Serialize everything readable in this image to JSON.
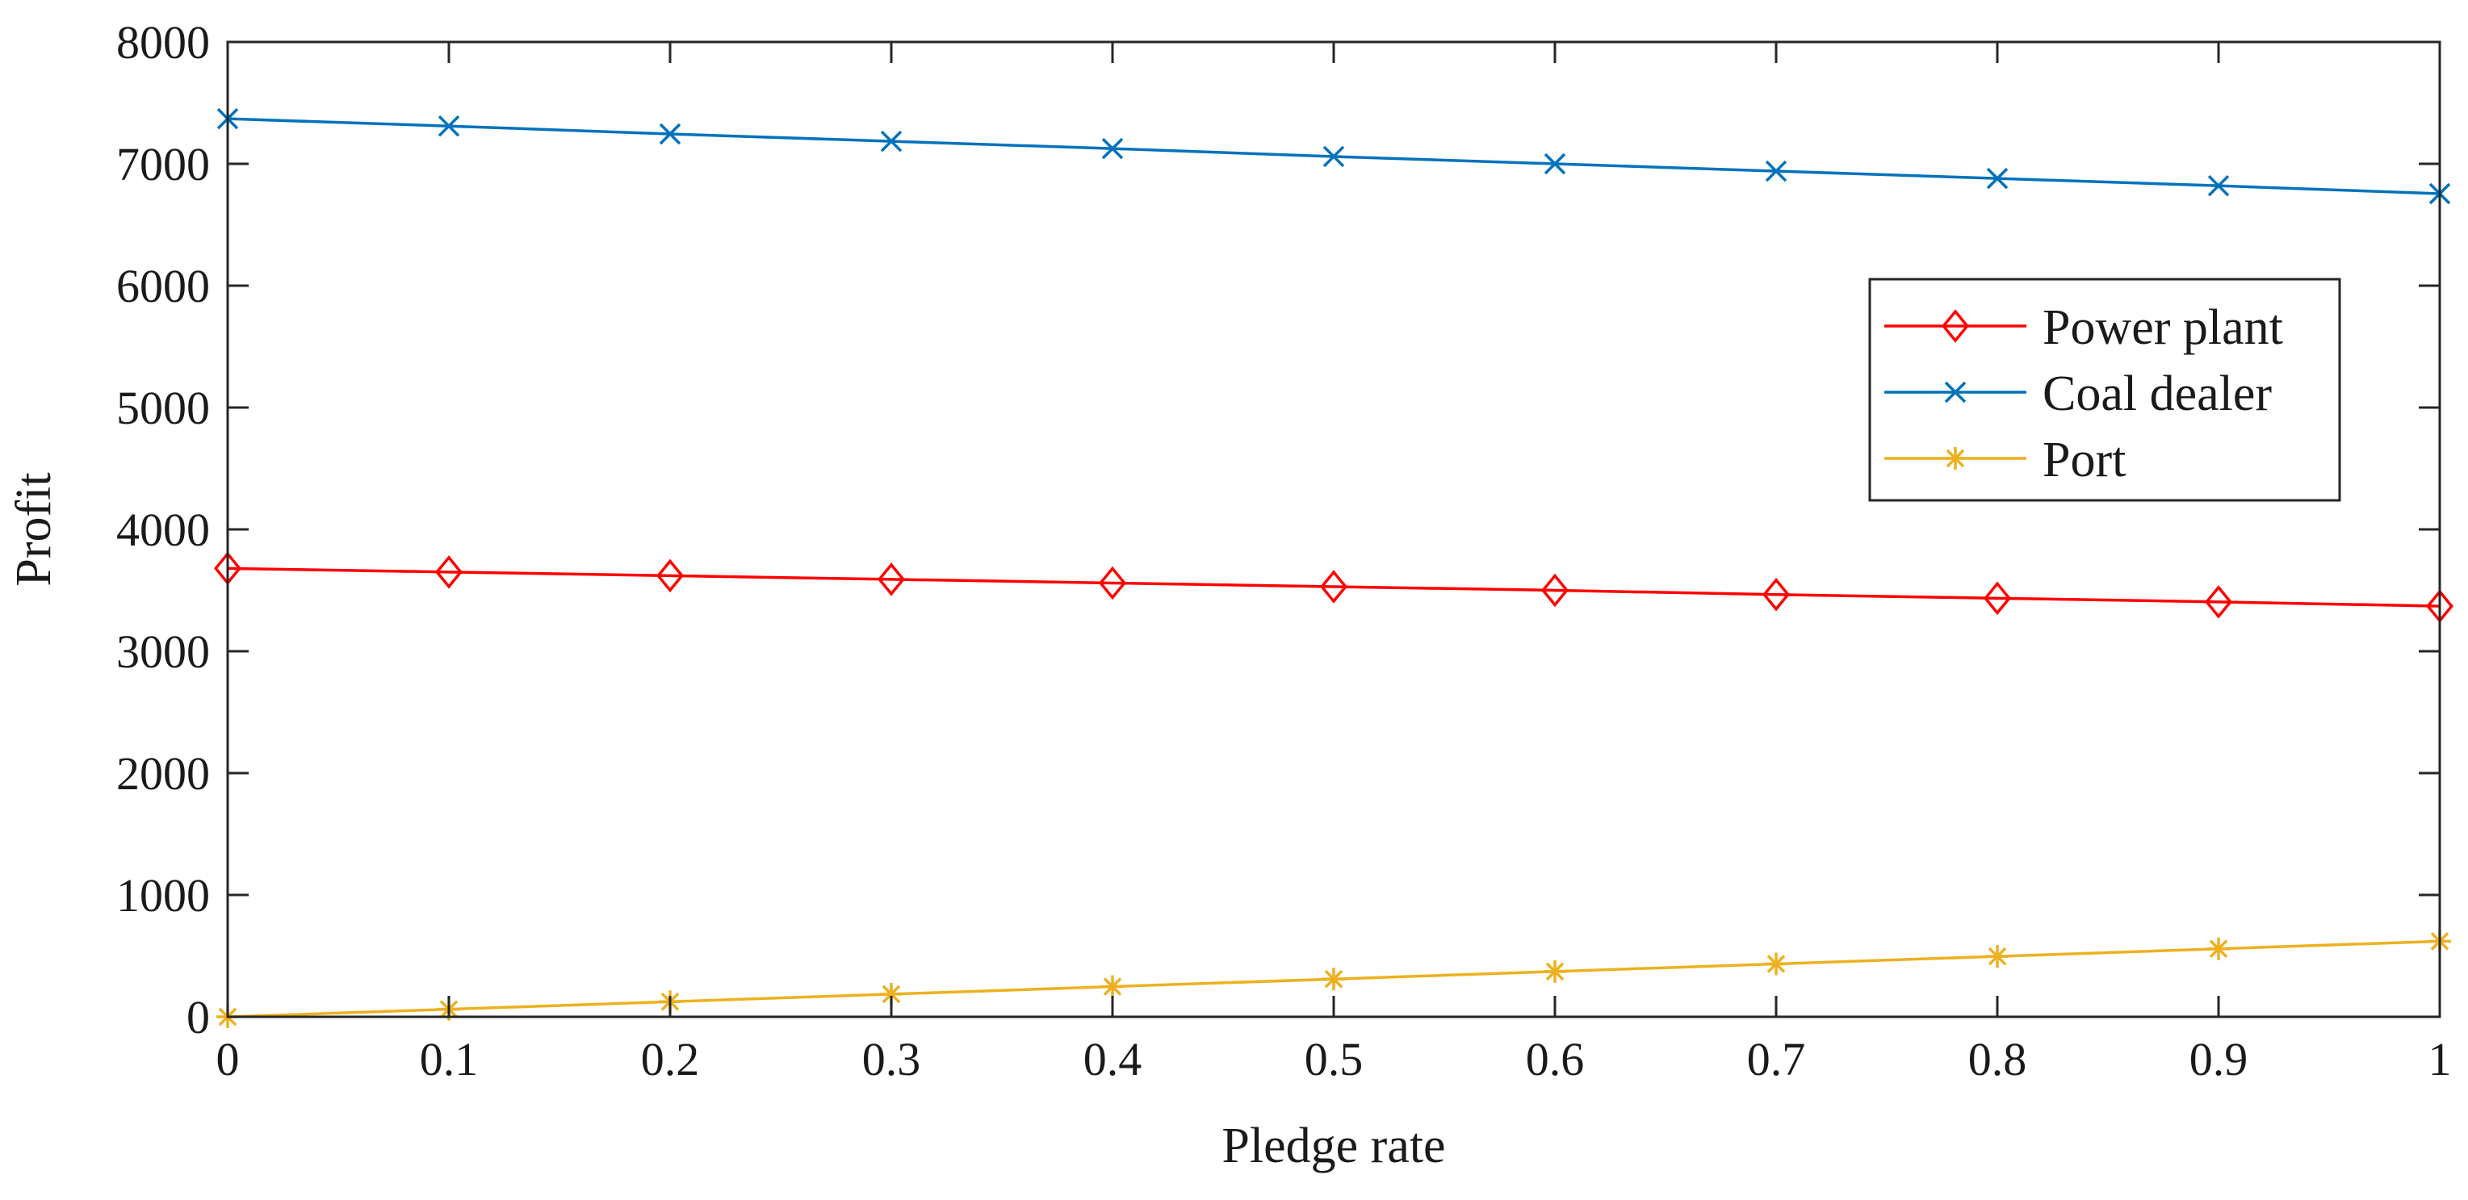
{
  "chart_data": {
    "type": "line",
    "title": "",
    "xlabel": "Pledge rate",
    "ylabel": "Profit",
    "xlim": [
      0,
      1
    ],
    "ylim": [
      0,
      8000
    ],
    "x": [
      0,
      0.1,
      0.2,
      0.3,
      0.4,
      0.5,
      0.6,
      0.7,
      0.8,
      0.9,
      1
    ],
    "x_ticks": [
      0,
      0.1,
      0.2,
      0.3,
      0.4,
      0.5,
      0.6,
      0.7,
      0.8,
      0.9,
      1
    ],
    "x_tick_labels": [
      "0",
      "0.1",
      "0.2",
      "0.3",
      "0.4",
      "0.5",
      "0.6",
      "0.7",
      "0.8",
      "0.9",
      "1"
    ],
    "y_ticks": [
      0,
      1000,
      2000,
      3000,
      4000,
      5000,
      6000,
      7000,
      8000
    ],
    "y_tick_labels": [
      "0",
      "1000",
      "2000",
      "3000",
      "4000",
      "5000",
      "6000",
      "7000",
      "8000"
    ],
    "grid": false,
    "legend_position": "right, upper-middle",
    "series": [
      {
        "name": "Power plant",
        "color": "#ff0000",
        "marker": "diamond",
        "values": [
          3680,
          3650,
          3620,
          3590,
          3560,
          3530,
          3500,
          3465,
          3435,
          3405,
          3370
        ]
      },
      {
        "name": "Coal dealer",
        "color": "#0072bd",
        "marker": "x",
        "values": [
          7370,
          7310,
          7245,
          7185,
          7125,
          7060,
          7000,
          6940,
          6880,
          6820,
          6755
        ]
      },
      {
        "name": "Port",
        "color": "#edb120",
        "marker": "asterisk",
        "values": [
          0,
          62,
          124,
          186,
          248,
          310,
          372,
          434,
          496,
          558,
          620
        ]
      }
    ]
  }
}
